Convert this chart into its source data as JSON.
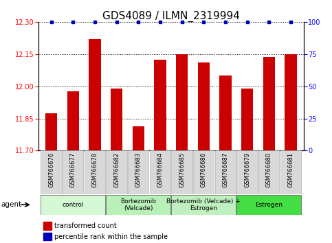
{
  "title": "GDS4089 / ILMN_2319994",
  "samples": [
    "GSM766676",
    "GSM766677",
    "GSM766678",
    "GSM766682",
    "GSM766683",
    "GSM766684",
    "GSM766685",
    "GSM766686",
    "GSM766687",
    "GSM766679",
    "GSM766680",
    "GSM766681"
  ],
  "bar_values": [
    11.875,
    11.975,
    12.22,
    11.99,
    11.815,
    12.125,
    12.148,
    12.11,
    12.05,
    11.99,
    12.135,
    12.148
  ],
  "bar_color": "#cc0000",
  "dot_color": "#0000bb",
  "ylim_left": [
    11.7,
    12.3
  ],
  "ylim_right": [
    0,
    100
  ],
  "yticks_left": [
    11.7,
    11.85,
    12.0,
    12.15,
    12.3
  ],
  "yticks_right": [
    0,
    25,
    50,
    75,
    100
  ],
  "groups": [
    {
      "label": "control",
      "start": 0,
      "end": 3,
      "color": "#d4f7d4"
    },
    {
      "label": "Bortezomib\n(Velcade)",
      "start": 3,
      "end": 6,
      "color": "#b8f0b8"
    },
    {
      "label": "Bortezomib (Velcade) +\nEstrogen",
      "start": 6,
      "end": 9,
      "color": "#c0f0c0"
    },
    {
      "label": "Estrogen",
      "start": 9,
      "end": 12,
      "color": "#44dd44"
    }
  ],
  "legend_items": [
    {
      "color": "#cc0000",
      "label": "transformed count"
    },
    {
      "color": "#0000bb",
      "label": "percentile rank within the sample"
    }
  ],
  "bar_width": 0.55,
  "title_fontsize": 11,
  "tick_fontsize": 7,
  "label_fontsize": 7.5
}
